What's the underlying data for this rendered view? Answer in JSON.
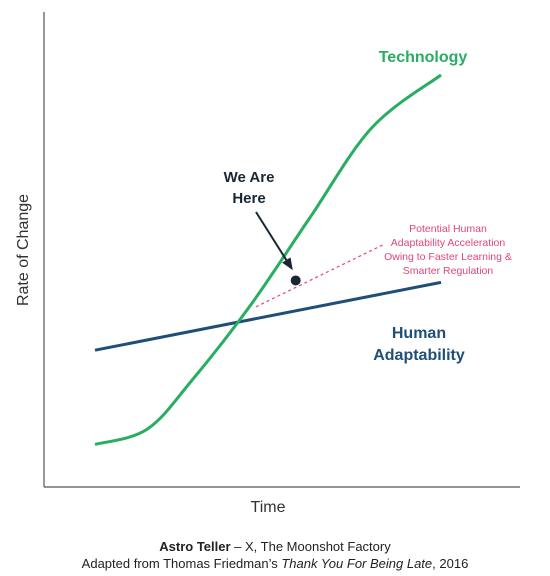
{
  "chart_data": {
    "type": "line",
    "xlabel": "Time",
    "ylabel": "Rate of Change",
    "series": [
      {
        "name": "Technology",
        "color": "#27ae60",
        "points": [
          [
            0,
            0.02
          ],
          [
            0.15,
            0.06
          ],
          [
            0.28,
            0.19
          ],
          [
            0.45,
            0.39
          ],
          [
            0.62,
            0.62
          ],
          [
            0.8,
            0.86
          ],
          [
            1.0,
            1.0
          ]
        ]
      },
      {
        "name": "Human Adaptability",
        "color": "#1f4e79",
        "points": [
          [
            0,
            0.27
          ],
          [
            1.0,
            0.45
          ]
        ]
      }
    ],
    "projection": {
      "label_lines": [
        "Potential Human",
        "Adaptability Acceleration",
        "Owing to Faster Learning &",
        "Smarter Regulation"
      ],
      "color": "#e0457b",
      "style": "dashed",
      "from": [
        0.465,
        0.385
      ],
      "to": [
        0.8,
        0.54
      ]
    },
    "marker": {
      "label_lines": [
        "We Are",
        "Here"
      ],
      "point": [
        0.58,
        0.455
      ]
    },
    "series_labels": {
      "technology": [
        "Technology"
      ],
      "human": [
        "Human",
        "Adaptability"
      ]
    }
  },
  "caption": {
    "line1_bold": "Astro Teller",
    "line1_rest": " – X, The Moonshot Factory",
    "line2_prefix": "Adapted from Thomas Friedman’s ",
    "line2_italic": "Thank You For Being Late",
    "line2_suffix": ", 2016"
  }
}
